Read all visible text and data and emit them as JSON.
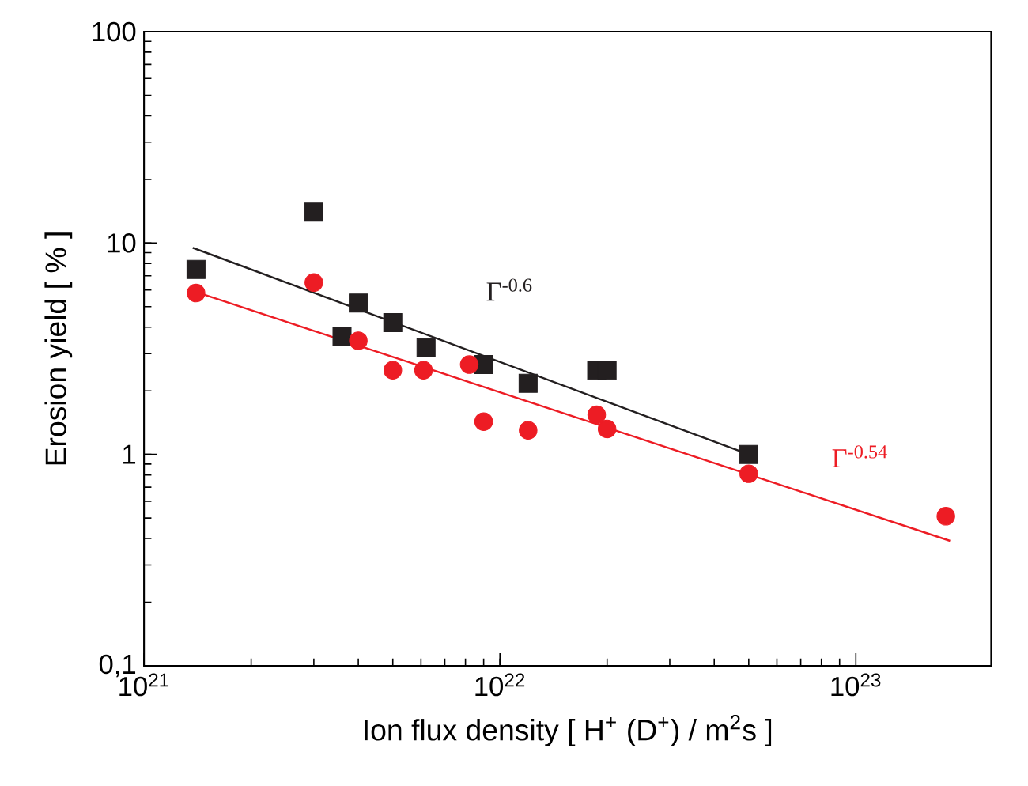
{
  "chart_data": {
    "type": "scatter",
    "xlabel": "Ion flux density [ H$^{+}$ (D$^{+}$) / m$^{2}$s ]",
    "ylabel": "Erosion yield [ % ]",
    "log": "xy",
    "xlim": [
      1e+21,
      2.4e+23
    ],
    "ylim": [
      0.1,
      100
    ],
    "xticks": [
      {
        "value": 1e+21,
        "label": "10$^{21}$"
      },
      {
        "value": 1e+22,
        "label": "10$^{22}$"
      },
      {
        "value": 1e+23,
        "label": "10$^{23}$"
      }
    ],
    "yticks": [
      {
        "value": 0.1,
        "label": "0,1"
      },
      1,
      10,
      100
    ],
    "series": [
      {
        "marker": "square",
        "color": "#231f20",
        "x": [
          1.4e+21,
          3e+21,
          3.6e+21,
          4e+21,
          5e+21,
          6.2e+21,
          9e+21,
          1.2e+22,
          1.87e+22,
          2e+22,
          5e+22
        ],
        "values": [
          7.5,
          14,
          3.6,
          5.2,
          4.2,
          3.2,
          2.66,
          2.17,
          2.5,
          2.5,
          1.0
        ]
      },
      {
        "marker": "circle",
        "color": "#ed1c24",
        "x": [
          1.4e+21,
          3e+21,
          4e+21,
          5e+21,
          6.1e+21,
          8.2e+21,
          9e+21,
          1.2e+22,
          1.87e+22,
          2e+22,
          5e+22,
          1.79e+23
        ],
        "values": [
          5.8,
          6.5,
          3.45,
          2.5,
          2.5,
          2.66,
          1.43,
          1.3,
          1.54,
          1.32,
          0.81,
          0.51
        ]
      },
      {
        "type": "line",
        "color": "#231f20",
        "x": [
          1.37e+21,
          5e+22
        ],
        "values": [
          9.5,
          1.0
        ]
      },
      {
        "type": "line",
        "color": "#ed1c24",
        "x": [
          1.43e+21,
          1.84e+23
        ],
        "values": [
          5.8,
          0.39
        ]
      }
    ],
    "annotations": [
      "Γ$^{-0.6}$",
      "Γ$^{-0.54}$"
    ]
  }
}
